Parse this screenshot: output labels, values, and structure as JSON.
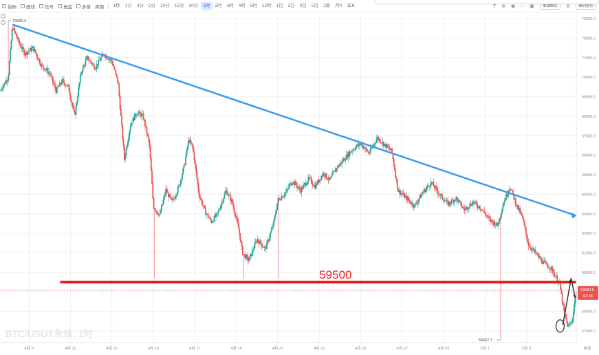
{
  "toolbar": {
    "buttons": [
      {
        "id": "indicators",
        "label": "指标"
      },
      {
        "id": "draw",
        "label": "画线"
      },
      {
        "id": "signals",
        "label": "信号"
      },
      {
        "id": "replay",
        "label": "复盘"
      },
      {
        "id": "multi",
        "label": "多窗"
      },
      {
        "id": "cycle",
        "label": "周期"
      }
    ],
    "timeframes": [
      "1秒",
      "1分",
      "3分",
      "5分",
      "10分",
      "15分",
      "30分",
      "1时",
      "2时",
      "3时",
      "4时",
      "6时",
      "12时",
      "1日",
      "2日",
      "3日",
      "5日",
      "1周",
      "月K",
      "年K"
    ],
    "active_timeframe": "1时",
    "right_buttons": [
      "单轴模式",
      "轴刻度形"
    ],
    "icon_names": [
      "text-icon",
      "crosshair-icon",
      "camera-icon",
      "fullscreen-icon",
      "maximize-icon",
      "settings-icon"
    ]
  },
  "colors": {
    "up": "#26a69a",
    "down": "#ef5350",
    "support": "#ef1c1c",
    "trend": "#3a9bea",
    "grid": "#f0f0f0",
    "price_tag": "#ef5350",
    "watermark": "#dcdcdc",
    "arrow": "#333333"
  },
  "chart_data": {
    "type": "candlestick",
    "symbol": "BTC/USDT永续, 1时",
    "watermark": "BTC/USDT永续, 1时",
    "y_ticks": [
      57000.0,
      58000.0,
      59000.0,
      60000.0,
      61000.0,
      62000.0,
      63000.0,
      64000.0,
      65000.0,
      66000.0,
      67000.0,
      68000.0,
      69000.0,
      70000.0,
      71000.0,
      72000.0,
      73000.0
    ],
    "ylim": [
      56400,
      73250
    ],
    "x_ticks": [
      "4月 9",
      "4月 11",
      "4月 13",
      "4月 15",
      "4月 17",
      "4月 19",
      "4月 21",
      "4月 23",
      "4月 25",
      "4月 27",
      "4月 29",
      "5月 1",
      "5月 3"
    ],
    "x_tick_days": [
      9,
      11,
      13,
      15,
      17,
      19,
      21,
      23,
      25,
      27,
      29,
      31,
      33
    ],
    "xlim_days": [
      7.6,
      35.4
    ],
    "high_marker": {
      "label": "72890.4",
      "value": 72890.4,
      "day": 8.0
    },
    "low_marker": {
      "label": "56537.7",
      "value": 56537.7,
      "day": 31.75
    },
    "current_price": {
      "value": 59083.5,
      "label": "59083.5",
      "countdown": "03:38"
    },
    "support": {
      "value": 59500,
      "label": "59500",
      "start_day": 10.5
    },
    "trendline": {
      "points": [
        [
          8.2,
          72700
        ],
        [
          35.4,
          62900
        ]
      ]
    },
    "axis_corner_label": "自动",
    "price_path": [
      [
        7.6,
        69300
      ],
      [
        8.0,
        70000
      ],
      [
        8.2,
        72600
      ],
      [
        8.5,
        71800
      ],
      [
        8.8,
        71200
      ],
      [
        9.2,
        71500
      ],
      [
        9.6,
        70600
      ],
      [
        10.0,
        70200
      ],
      [
        10.3,
        69300
      ],
      [
        10.6,
        69800
      ],
      [
        10.9,
        69500
      ],
      [
        11.2,
        68000
      ],
      [
        11.5,
        70200
      ],
      [
        11.8,
        71000
      ],
      [
        12.2,
        70500
      ],
      [
        12.6,
        71200
      ],
      [
        13.0,
        70800
      ],
      [
        13.3,
        69700
      ],
      [
        13.6,
        65800
      ],
      [
        13.9,
        67600
      ],
      [
        14.2,
        68200
      ],
      [
        14.5,
        68000
      ],
      [
        14.8,
        66600
      ],
      [
        15.0,
        63400
      ],
      [
        15.3,
        62900
      ],
      [
        15.6,
        64200
      ],
      [
        15.9,
        63600
      ],
      [
        16.2,
        64300
      ],
      [
        16.5,
        65500
      ],
      [
        16.7,
        66800
      ],
      [
        16.9,
        66400
      ],
      [
        17.2,
        64000
      ],
      [
        17.5,
        63100
      ],
      [
        17.8,
        62600
      ],
      [
        18.1,
        63000
      ],
      [
        18.5,
        64200
      ],
      [
        18.8,
        63600
      ],
      [
        19.1,
        62300
      ],
      [
        19.3,
        61000
      ],
      [
        19.6,
        60600
      ],
      [
        20.0,
        61700
      ],
      [
        20.4,
        61200
      ],
      [
        20.8,
        62500
      ],
      [
        21.0,
        63700
      ],
      [
        21.4,
        64100
      ],
      [
        21.7,
        64700
      ],
      [
        22.1,
        64200
      ],
      [
        22.5,
        64800
      ],
      [
        22.8,
        64400
      ],
      [
        23.2,
        65100
      ],
      [
        23.5,
        64700
      ],
      [
        23.8,
        65300
      ],
      [
        24.2,
        65800
      ],
      [
        24.6,
        66300
      ],
      [
        25.0,
        66600
      ],
      [
        25.4,
        66100
      ],
      [
        25.8,
        66900
      ],
      [
        26.2,
        66500
      ],
      [
        26.5,
        66200
      ],
      [
        26.8,
        64200
      ],
      [
        27.2,
        63800
      ],
      [
        27.6,
        63400
      ],
      [
        28.0,
        64100
      ],
      [
        28.4,
        64600
      ],
      [
        28.8,
        64000
      ],
      [
        29.2,
        63500
      ],
      [
        29.6,
        63800
      ],
      [
        30.0,
        63200
      ],
      [
        30.4,
        63600
      ],
      [
        30.8,
        63300
      ],
      [
        31.2,
        62700
      ],
      [
        31.6,
        62400
      ],
      [
        31.9,
        63600
      ],
      [
        32.2,
        64400
      ],
      [
        32.5,
        63500
      ],
      [
        32.8,
        62800
      ],
      [
        33.1,
        61400
      ],
      [
        33.5,
        60900
      ],
      [
        33.8,
        60500
      ],
      [
        34.1,
        60300
      ],
      [
        34.3,
        60000
      ],
      [
        34.6,
        59400
      ],
      [
        34.8,
        58000
      ],
      [
        35.0,
        57200
      ],
      [
        35.2,
        57500
      ],
      [
        35.4,
        59083.5
      ]
    ]
  }
}
